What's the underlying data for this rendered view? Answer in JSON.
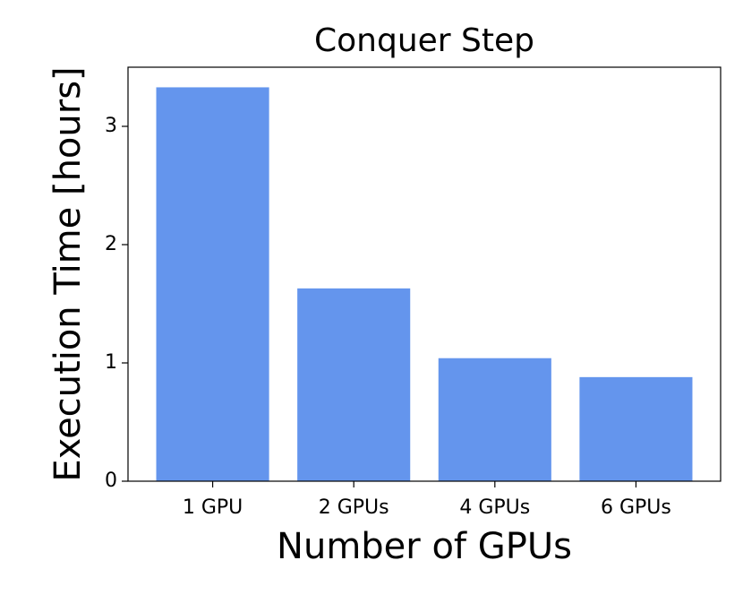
{
  "chart_data": {
    "type": "bar",
    "title": "Conquer Step",
    "x_label": "Number of GPUs",
    "y_label": "Execution Time [hours]",
    "categories": [
      "1 GPU",
      "2 GPUs",
      "4 GPUs",
      "6 GPUs"
    ],
    "values": [
      3.33,
      1.63,
      1.04,
      0.88
    ],
    "color": "#6495ed",
    "ylim": [
      0,
      3.5
    ],
    "yticks": [
      0,
      1,
      2,
      3
    ],
    "grid": false
  }
}
